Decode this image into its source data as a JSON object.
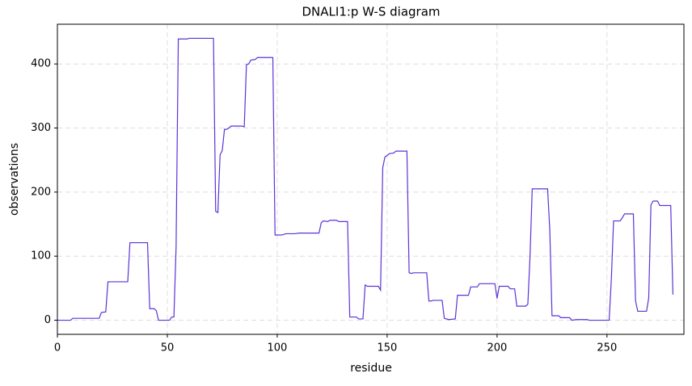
{
  "chart_data": {
    "type": "line",
    "title": "DNALI1:p W-S diagram",
    "x_label": "residue",
    "y_label": "observations",
    "x": [
      0,
      6,
      7,
      19,
      20,
      22,
      23,
      32,
      33,
      41,
      42,
      44,
      45,
      46,
      51,
      52,
      53,
      54,
      55,
      59,
      60,
      71,
      72,
      73,
      74,
      75,
      76,
      77,
      78,
      79,
      84,
      85,
      86,
      87,
      88,
      90,
      91,
      98,
      99,
      102,
      104,
      108,
      110,
      119,
      120,
      121,
      123,
      124,
      127,
      128,
      132,
      133,
      136,
      137,
      139,
      140,
      141,
      146,
      147,
      148,
      149,
      150,
      151,
      153,
      154,
      159,
      160,
      161,
      162,
      168,
      169,
      170,
      171,
      175,
      176,
      178,
      181,
      182,
      187,
      188,
      191,
      192,
      199,
      200,
      201,
      205,
      206,
      208,
      209,
      213,
      214,
      215,
      216,
      223,
      224,
      225,
      228,
      229,
      233,
      234,
      236,
      241,
      242,
      251,
      252,
      253,
      256,
      257,
      258,
      262,
      263,
      264,
      268,
      269,
      270,
      271,
      273,
      274,
      279,
      280
    ],
    "values": [
      0,
      0,
      3,
      3,
      12,
      13,
      60,
      60,
      121,
      121,
      18,
      18,
      15,
      0,
      0,
      5,
      5,
      115,
      439,
      439,
      440,
      440,
      170,
      168,
      258,
      265,
      298,
      298,
      300,
      303,
      303,
      302,
      399,
      400,
      406,
      407,
      410,
      410,
      133,
      133,
      135,
      135,
      136,
      136,
      152,
      155,
      154,
      156,
      156,
      154,
      154,
      5,
      5,
      2,
      2,
      55,
      53,
      53,
      47,
      238,
      255,
      257,
      260,
      261,
      264,
      264,
      74,
      73,
      74,
      74,
      30,
      30,
      31,
      31,
      3,
      1,
      2,
      39,
      39,
      52,
      52,
      57,
      57,
      34,
      53,
      53,
      49,
      49,
      22,
      22,
      25,
      100,
      205,
      205,
      140,
      7,
      7,
      4,
      4,
      0,
      1,
      1,
      0,
      0,
      65,
      155,
      155,
      160,
      166,
      166,
      30,
      14,
      14,
      35,
      180,
      186,
      186,
      179,
      179,
      40
    ],
    "color": "#5b34d6",
    "xlim": [
      0,
      285
    ],
    "ylim": [
      -22,
      462
    ],
    "xticks": [
      0,
      50,
      100,
      150,
      200,
      250
    ],
    "yticks": [
      0,
      100,
      200,
      300,
      400
    ],
    "grid": true
  }
}
